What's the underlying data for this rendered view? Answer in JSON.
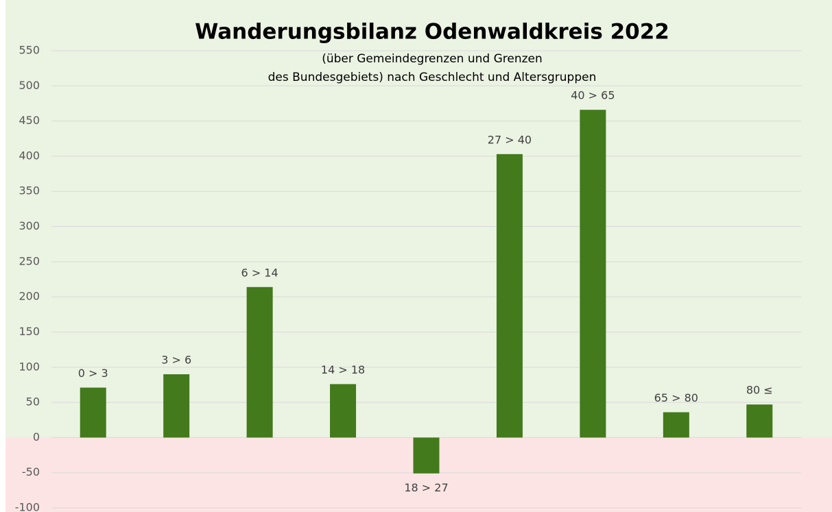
{
  "chart_data": {
    "type": "bar",
    "title": "Wanderungsbilanz Odenwaldkreis 2022",
    "subtitle": [
      "(über Gemeindegrenzen  und Grenzen",
      "des Bundesgebiets) nach Geschlecht und Altersgruppen"
    ],
    "categories": [
      "0 > 3",
      "3 > 6",
      "6 > 14",
      "14 > 18",
      "18 > 27",
      "27 > 40",
      "40 > 65",
      "65 > 80",
      "80 ≤"
    ],
    "values": [
      71,
      90,
      214,
      76,
      -51,
      403,
      466,
      36,
      47
    ],
    "color": "#437a1c",
    "ylim": [
      -100,
      550
    ],
    "yticks": [
      -100,
      -50,
      0,
      50,
      100,
      150,
      200,
      250,
      300,
      350,
      400,
      450,
      500,
      550
    ],
    "grid": true
  }
}
